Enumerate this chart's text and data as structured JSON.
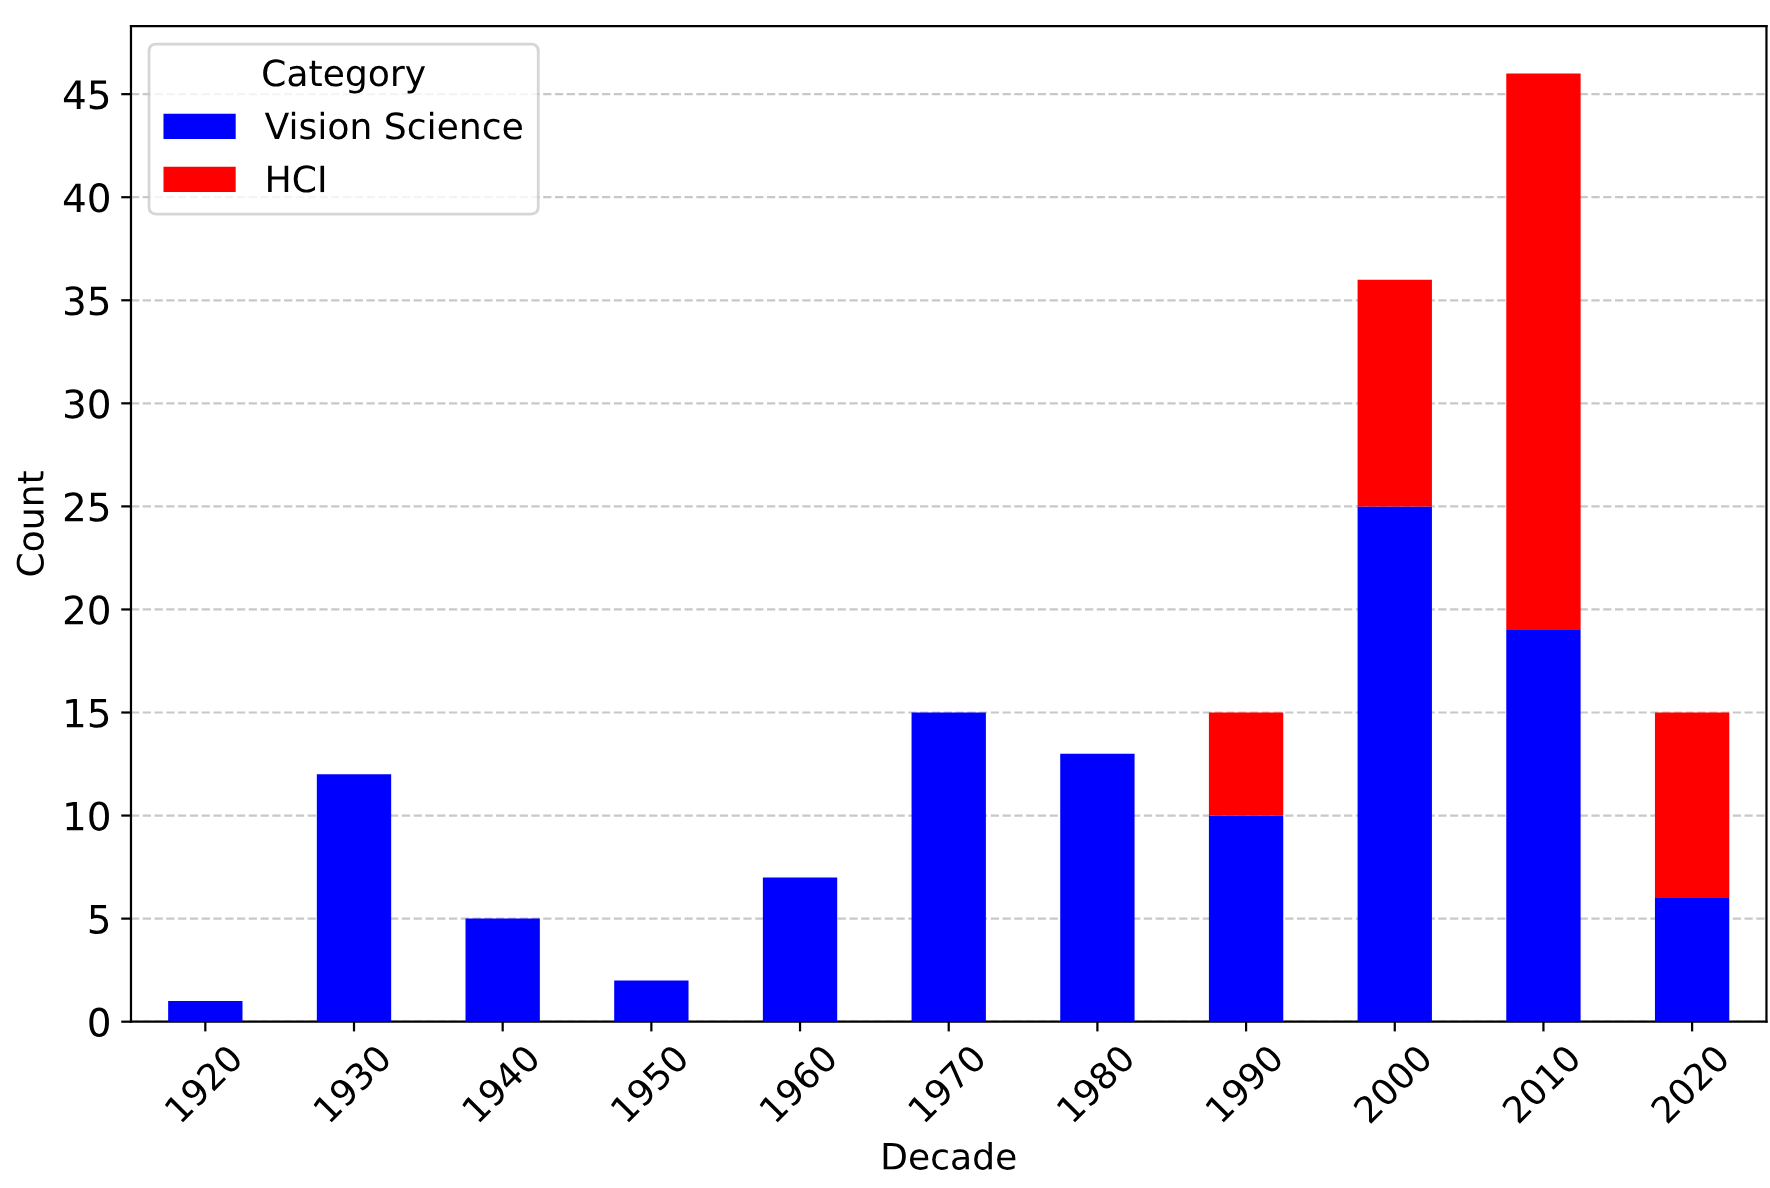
{
  "chart_data": {
    "type": "bar",
    "stacked": true,
    "xlabel": "Decade",
    "ylabel": "Count",
    "legend_title": "Category",
    "legend": "top left",
    "grid": "y",
    "categories": [
      "1920",
      "1930",
      "1940",
      "1950",
      "1960",
      "1970",
      "1980",
      "1990",
      "2000",
      "2010",
      "2020"
    ],
    "series": [
      {
        "name": "Vision Science",
        "color": "#0000ff",
        "values": [
          1,
          12,
          5,
          2,
          7,
          15,
          13,
          10,
          25,
          19,
          6
        ]
      },
      {
        "name": "HCI",
        "color": "#ff0000",
        "values": [
          0,
          0,
          0,
          0,
          0,
          0,
          0,
          5,
          11,
          27,
          9
        ]
      }
    ],
    "ylim": [
      0,
      48.3
    ],
    "yticks": [
      0,
      5,
      10,
      15,
      20,
      25,
      30,
      35,
      40,
      45
    ]
  }
}
